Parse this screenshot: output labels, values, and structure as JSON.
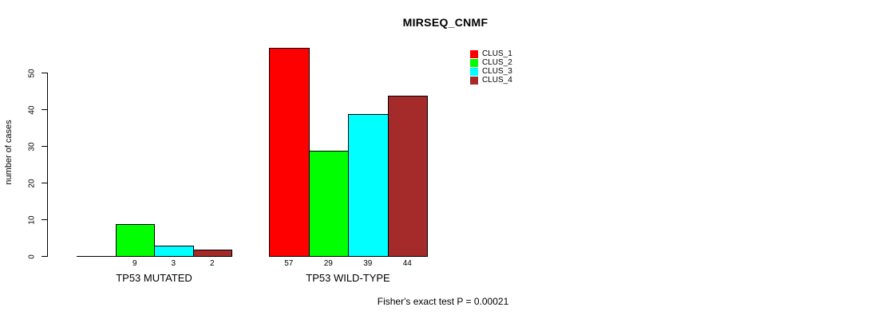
{
  "chart_data": {
    "type": "bar",
    "title": "MIRSEQ_CNMF",
    "ylabel": "number of cases",
    "xlabel": "",
    "ylim": [
      0,
      57
    ],
    "yticks": [
      0,
      10,
      20,
      30,
      40,
      50
    ],
    "grid": false,
    "legend_position": "top-right",
    "bar_border_color": "#000000",
    "categories": [
      "TP53 MUTATED",
      "TP53 WILD-TYPE"
    ],
    "series": [
      {
        "name": "CLUS_1",
        "color": "#FF0000",
        "values": [
          0,
          57
        ]
      },
      {
        "name": "CLUS_2",
        "color": "#00FF00",
        "values": [
          9,
          29
        ]
      },
      {
        "name": "CLUS_3",
        "color": "#00FFFF",
        "values": [
          3,
          39
        ]
      },
      {
        "name": "CLUS_4",
        "color": "#A52A2A",
        "values": [
          2,
          44
        ]
      }
    ],
    "bar_value_labels": [
      [
        "",
        "9",
        "3",
        "2"
      ],
      [
        "57",
        "29",
        "39",
        "44"
      ]
    ],
    "annotation": "Fisher's exact test P = 0.00021"
  }
}
